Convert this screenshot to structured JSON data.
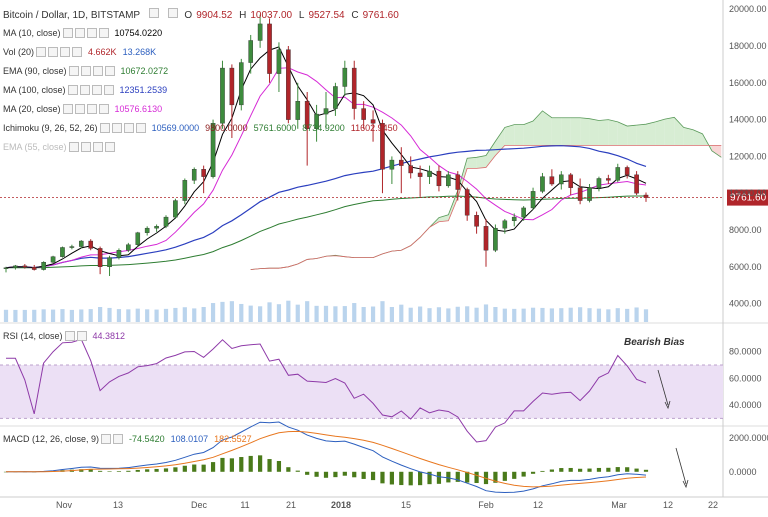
{
  "header": {
    "symbol": "Bitcoin / Dollar, 1D, BITSTAMP",
    "ohlc": [
      {
        "label": "O",
        "value": "9904.52"
      },
      {
        "label": "H",
        "value": "10037.00"
      },
      {
        "label": "L",
        "value": "9527.54"
      },
      {
        "label": "C",
        "value": "9761.60"
      }
    ]
  },
  "indicators": [
    {
      "name": "MA (10, close)",
      "values": [
        "10754.0220"
      ],
      "colors": [
        "#000000"
      ]
    },
    {
      "name": "Vol (20)",
      "values": [
        "4.662K",
        "13.268K"
      ],
      "colors": [
        "#b0252a",
        "#2c5fbf"
      ]
    },
    {
      "name": "EMA (90, close)",
      "values": [
        "10672.0272"
      ],
      "colors": [
        "#2e7d32"
      ]
    },
    {
      "name": "MA (100, close)",
      "values": [
        "12351.2539"
      ],
      "colors": [
        "#2b3fbf"
      ]
    },
    {
      "name": "MA (20, close)",
      "values": [
        "10576.6130"
      ],
      "colors": [
        "#d62ad6"
      ]
    },
    {
      "name": "Ichimoku (9, 26, 52, 26)",
      "values": [
        "10569.0000",
        "9800.0000",
        "5761.6000",
        "8734.9200",
        "11602.9450"
      ],
      "colors": [
        "#2c5fbf",
        "#8b1a1a",
        "#2e7d32",
        "#2e7d32",
        "#b0252a"
      ]
    },
    {
      "name": "EMA (55, close)",
      "values": [],
      "colors": []
    }
  ],
  "rsi": {
    "label": "RSI (14, close)",
    "value": "44.3812",
    "annotation": "Bearish Bias"
  },
  "macd": {
    "label": "MACD (12, 26, close, 9)",
    "values": [
      "-74.5420",
      "108.0107",
      "182.5527"
    ],
    "colors": [
      "#2e7d32",
      "#2c5fbf",
      "#e8771f"
    ]
  },
  "price_tag": "9761.60",
  "colors": {
    "up": "#3d8b3d",
    "down": "#b0252a",
    "ma10": "#000000",
    "ma20": "#d62ad6",
    "ma100": "#2b3fbf",
    "ema90": "#2e7d32",
    "cloud_green": "#cde8c8",
    "cloud_red": "#f6cccc",
    "volume": "#a9c9e8",
    "rsi": "#8e3aa8",
    "macd_line": "#2c5fbf",
    "signal_line": "#e8771f"
  },
  "chart_data": {
    "type": "candlestick",
    "price_axis": {
      "ticks": [
        "20000.00",
        "18000.00",
        "16000.00",
        "14000.00",
        "12000.00",
        "10000.00",
        "8000.00",
        "6000.00",
        "4000.00"
      ],
      "range": [
        3000,
        20500
      ]
    },
    "rsi_axis": {
      "ticks": [
        "80.0000",
        "60.0000",
        "40.0000"
      ],
      "range": [
        25,
        100
      ],
      "band": [
        30,
        70
      ]
    },
    "macd_axis": {
      "ticks": [
        "2000.0000",
        "0.0000"
      ],
      "range": [
        -1200,
        2600
      ]
    },
    "x_labels": [
      "Nov",
      "13",
      "Dec",
      "11",
      "21",
      "2018",
      "15",
      "Feb",
      "12",
      "Mar",
      "12",
      "22"
    ],
    "candles": [
      [
        5900,
        6000,
        5700,
        5950
      ],
      [
        5950,
        6100,
        5850,
        6050
      ],
      [
        6050,
        6150,
        5900,
        5980
      ],
      [
        5980,
        6100,
        5800,
        5850
      ],
      [
        5850,
        6300,
        5800,
        6250
      ],
      [
        6250,
        6600,
        6200,
        6550
      ],
      [
        6550,
        7100,
        6500,
        7050
      ],
      [
        7050,
        7200,
        6950,
        7100
      ],
      [
        7100,
        7450,
        7000,
        7400
      ],
      [
        7400,
        7500,
        6900,
        7000
      ],
      [
        7000,
        7100,
        5600,
        6000
      ],
      [
        6000,
        6600,
        5500,
        6500
      ],
      [
        6500,
        7000,
        6400,
        6900
      ],
      [
        6900,
        7300,
        6800,
        7200
      ],
      [
        7200,
        7900,
        7100,
        7850
      ],
      [
        7850,
        8200,
        7700,
        8100
      ],
      [
        8100,
        8300,
        7900,
        8200
      ],
      [
        8200,
        8800,
        8100,
        8700
      ],
      [
        8700,
        9700,
        8600,
        9600
      ],
      [
        9600,
        10800,
        9400,
        10700
      ],
      [
        10700,
        11400,
        10500,
        11300
      ],
      [
        11300,
        11500,
        10000,
        10900
      ],
      [
        10900,
        14000,
        10800,
        13800
      ],
      [
        13800,
        17200,
        13500,
        16800
      ],
      [
        16800,
        17000,
        13000,
        14800
      ],
      [
        14800,
        17300,
        14500,
        17100
      ],
      [
        17100,
        18600,
        16500,
        18300
      ],
      [
        18300,
        19700,
        17900,
        19200
      ],
      [
        19200,
        19500,
        16000,
        16500
      ],
      [
        16500,
        18200,
        15500,
        17800
      ],
      [
        17800,
        18000,
        13800,
        14000
      ],
      [
        14000,
        16000,
        13500,
        15000
      ],
      [
        15000,
        15500,
        11500,
        13500
      ],
      [
        13500,
        14800,
        12800,
        14300
      ],
      [
        14300,
        15500,
        13500,
        14600
      ],
      [
        14600,
        16000,
        14200,
        15800
      ],
      [
        15800,
        17200,
        15300,
        16800
      ],
      [
        16800,
        17200,
        14000,
        14600
      ],
      [
        14600,
        15000,
        13500,
        14000
      ],
      [
        14000,
        14500,
        12800,
        13800
      ],
      [
        13800,
        14000,
        10000,
        11300
      ],
      [
        11300,
        12000,
        10500,
        11800
      ],
      [
        11800,
        12500,
        10000,
        11500
      ],
      [
        11500,
        12000,
        10800,
        11100
      ],
      [
        11100,
        11500,
        9800,
        10900
      ],
      [
        10900,
        11500,
        10500,
        11200
      ],
      [
        11200,
        11500,
        10100,
        10400
      ],
      [
        10400,
        11200,
        10300,
        11000
      ],
      [
        11000,
        11200,
        9600,
        10200
      ],
      [
        10200,
        10300,
        8500,
        8800
      ],
      [
        8800,
        9000,
        7800,
        8200
      ],
      [
        8200,
        8600,
        6000,
        6900
      ],
      [
        6900,
        8300,
        6800,
        8100
      ],
      [
        8100,
        8600,
        7800,
        8500
      ],
      [
        8500,
        8900,
        8200,
        8700
      ],
      [
        8700,
        9300,
        8500,
        9200
      ],
      [
        9200,
        10300,
        9100,
        10100
      ],
      [
        10100,
        11100,
        10000,
        10900
      ],
      [
        10900,
        11300,
        10400,
        10500
      ],
      [
        10500,
        11200,
        10200,
        11000
      ],
      [
        11000,
        11100,
        9900,
        10300
      ],
      [
        10300,
        10800,
        9400,
        9600
      ],
      [
        9600,
        10500,
        9500,
        10300
      ],
      [
        10300,
        10900,
        10100,
        10800
      ],
      [
        10800,
        11000,
        10500,
        10700
      ],
      [
        10700,
        11600,
        10600,
        11400
      ],
      [
        11400,
        11500,
        10800,
        11000
      ],
      [
        11000,
        11200,
        9900,
        10000
      ],
      [
        9900,
        10037,
        9527,
        9761
      ]
    ]
  }
}
